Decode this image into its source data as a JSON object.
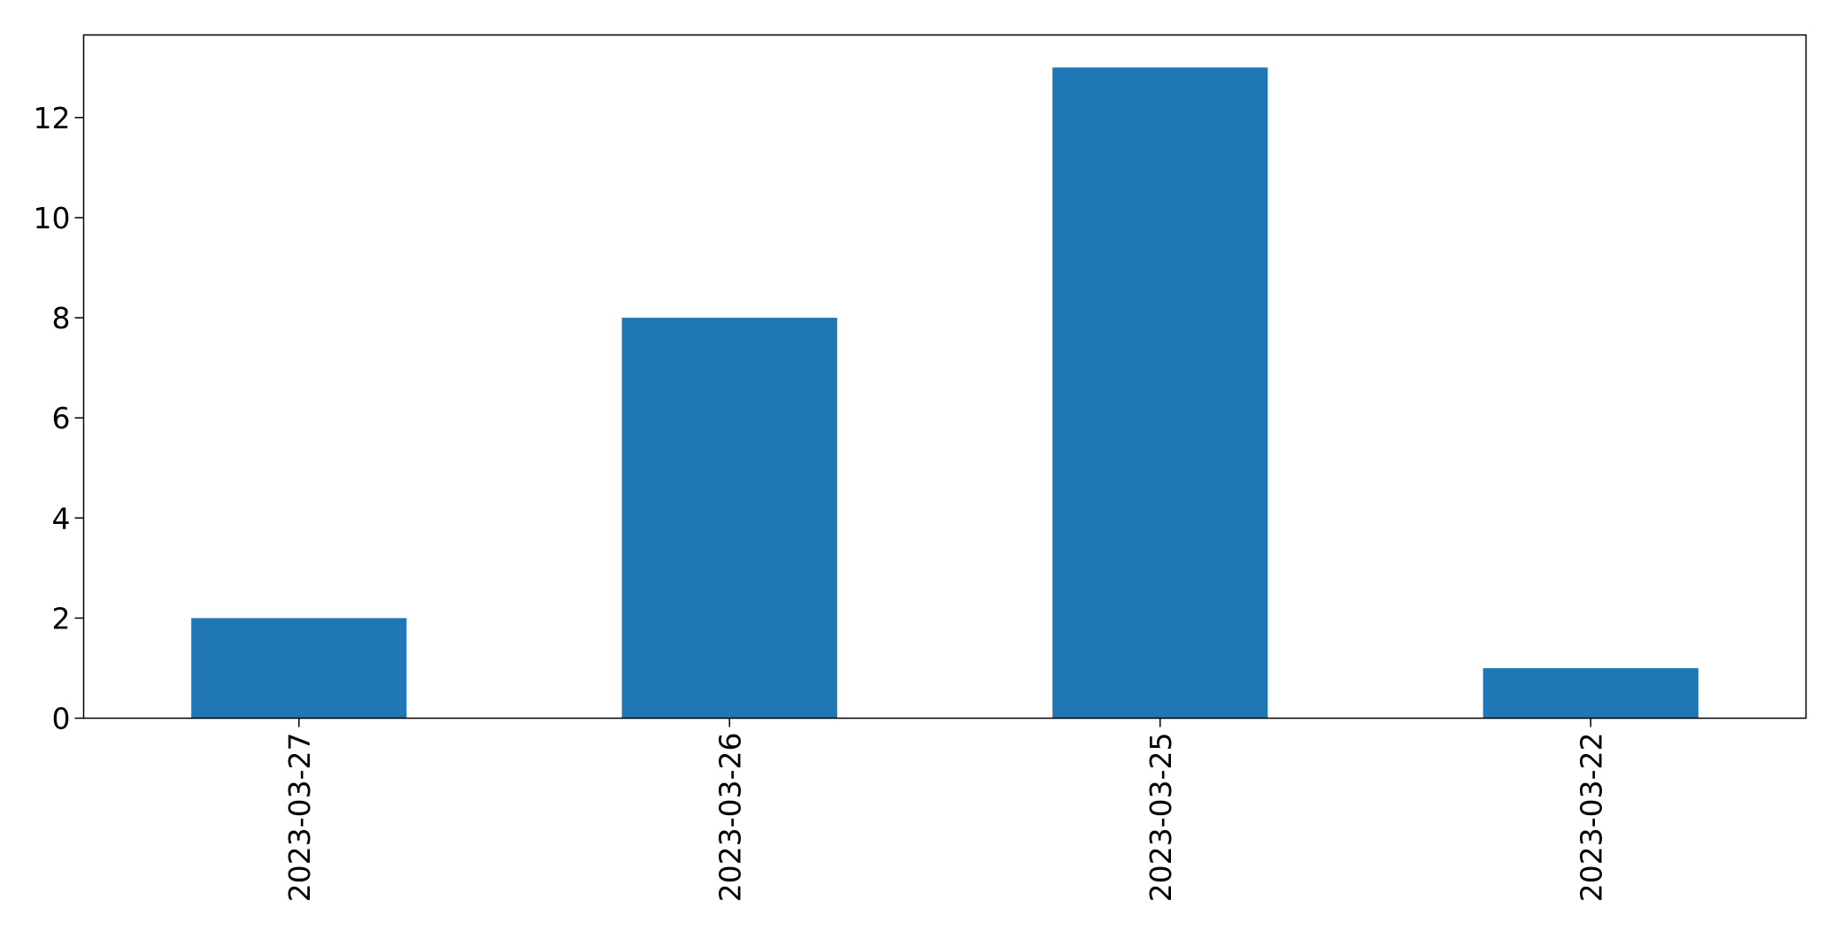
{
  "chart_data": {
    "type": "bar",
    "title": "",
    "xlabel": "",
    "ylabel": "",
    "categories": [
      "2023-03-27",
      "2023-03-26",
      "2023-03-25",
      "2023-03-22"
    ],
    "values": [
      2,
      8,
      13,
      1
    ],
    "ylim": [
      0,
      13.65
    ],
    "yticks": [
      0,
      2,
      4,
      6,
      8,
      10,
      12
    ],
    "grid": false,
    "legend": "none",
    "bar_color": "#1f77b4",
    "x_tick_rotation": "vertical"
  }
}
